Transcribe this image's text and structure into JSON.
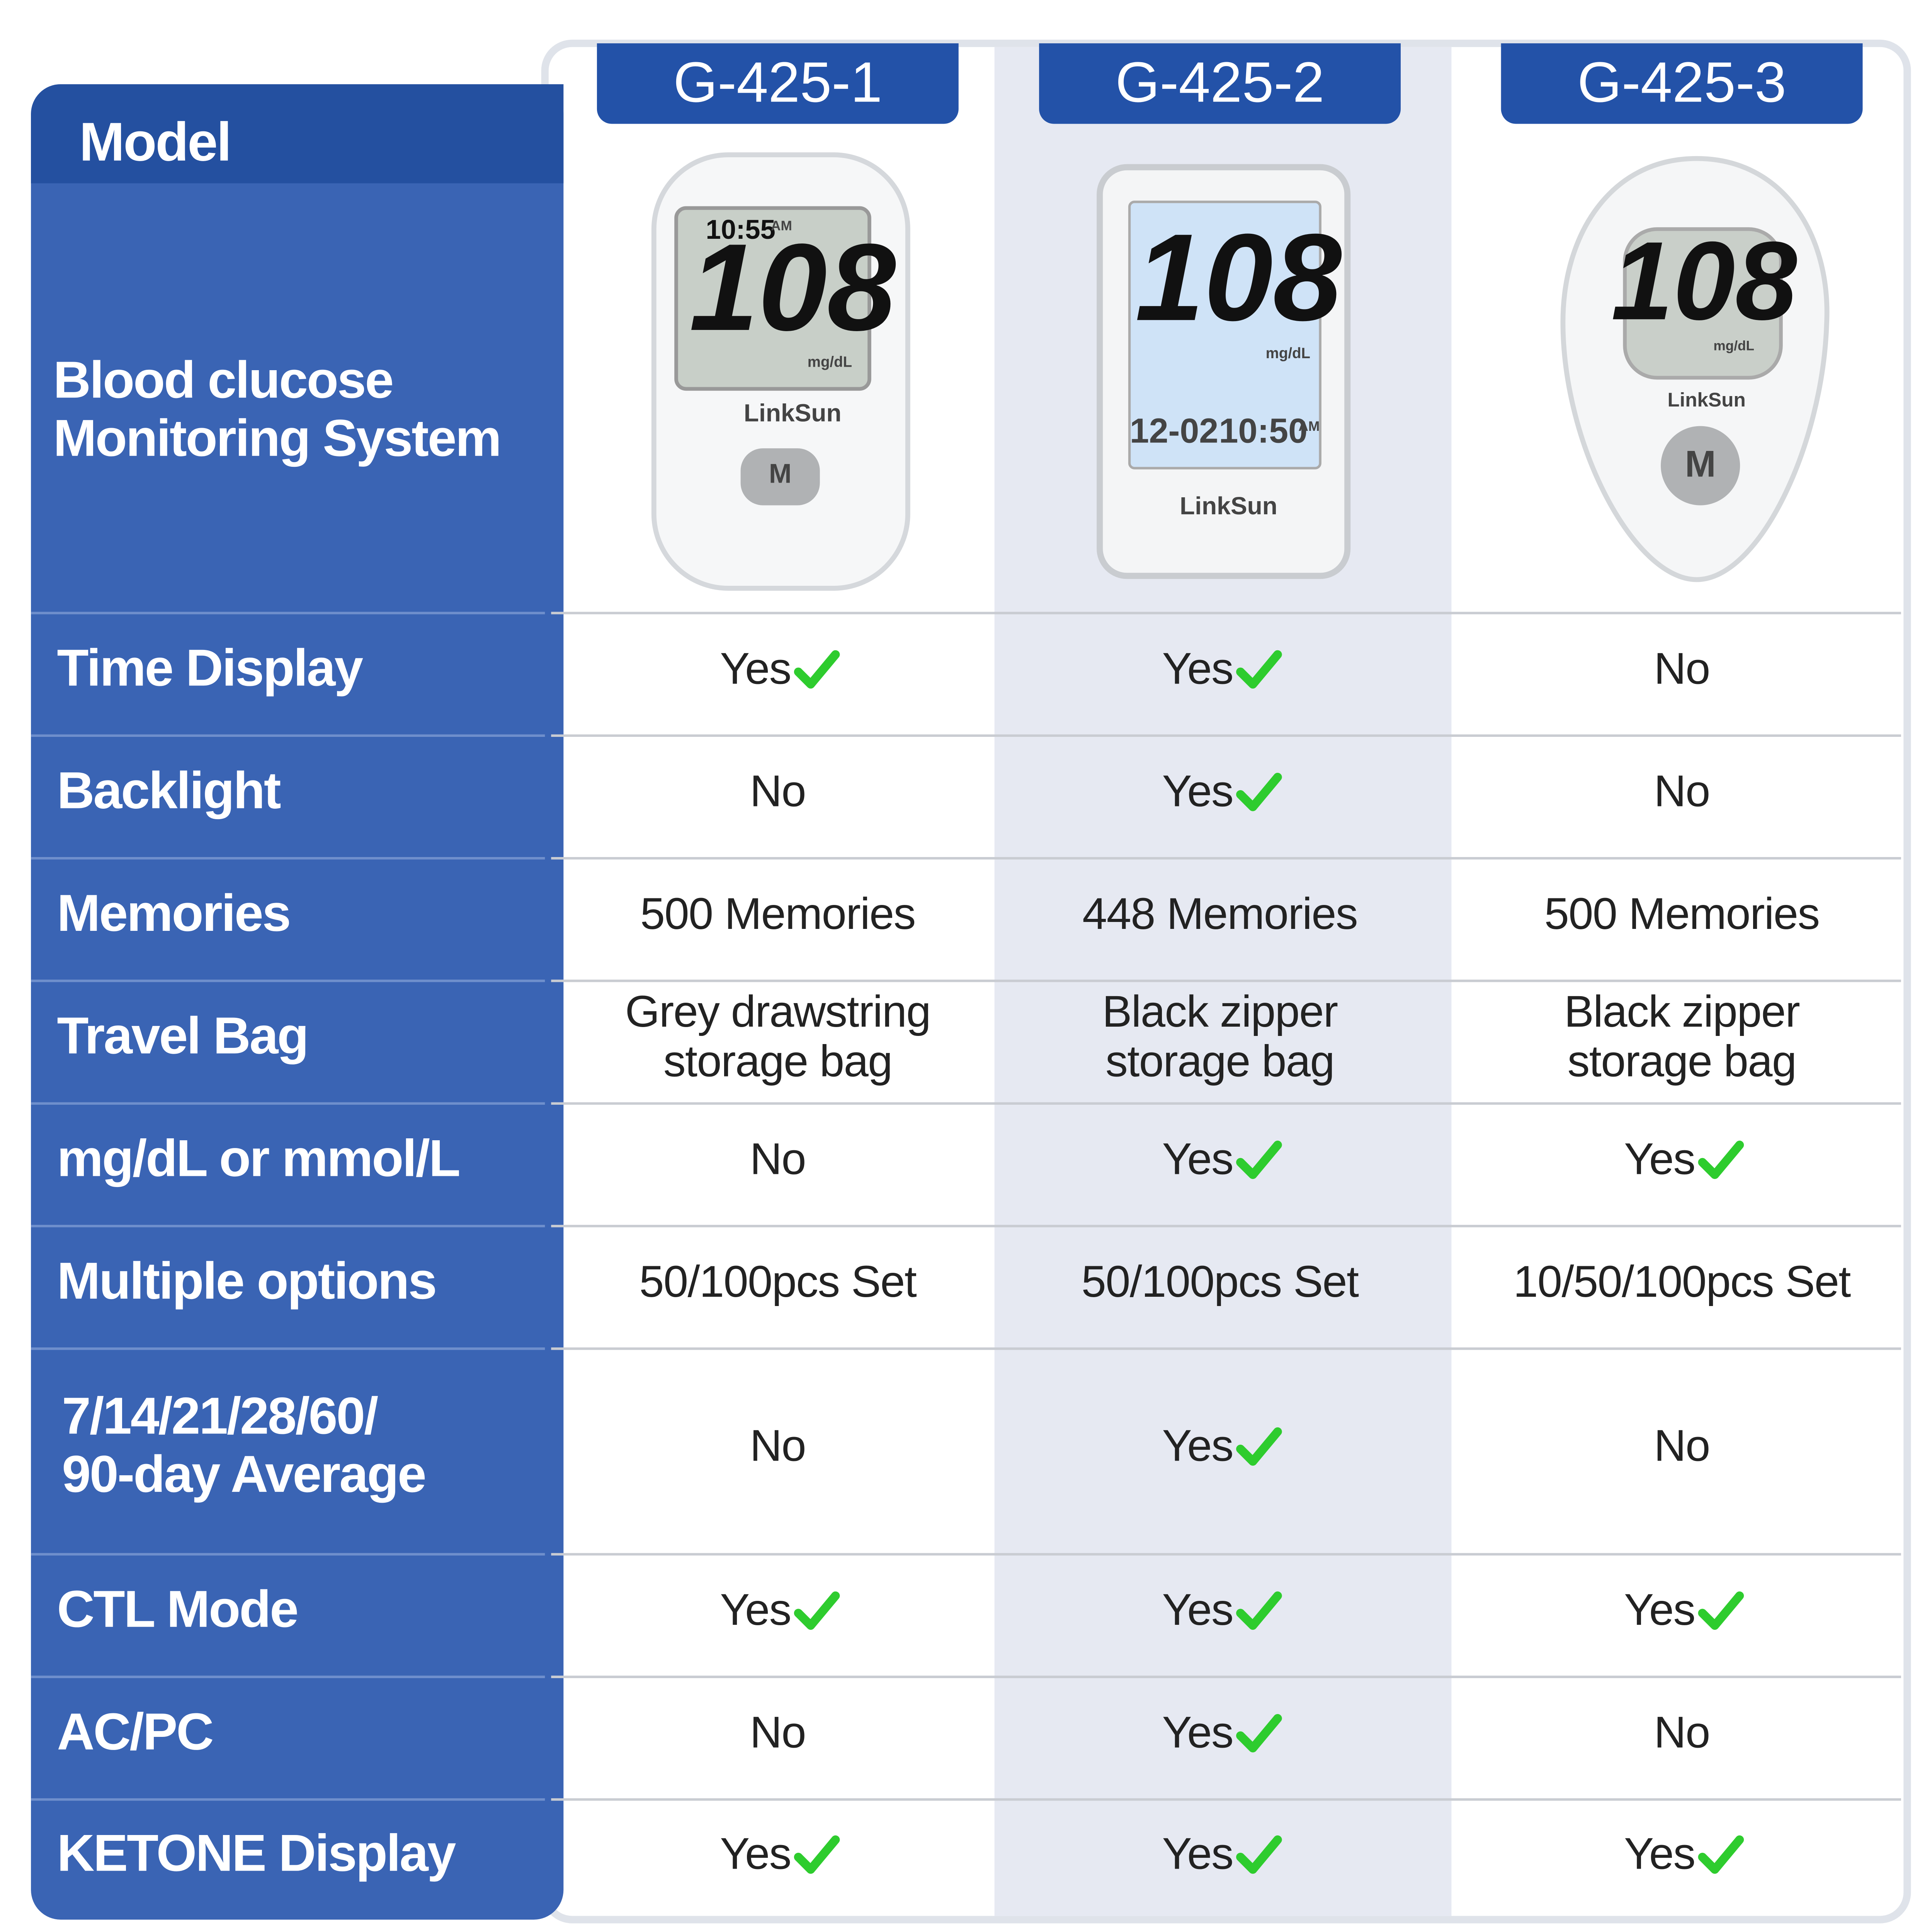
{
  "header": {
    "corner": "Model",
    "product_label": [
      "Blood clucose",
      "Monitoring System"
    ]
  },
  "models": [
    "G-425-1",
    "G-425-2",
    "G-425-3"
  ],
  "devices": [
    {
      "texts": [
        "10:55",
        "AM",
        "108",
        "mg/dL",
        "LinkSun",
        "M"
      ]
    },
    {
      "texts": [
        "108",
        "mg/dL",
        "12-02",
        "10:50",
        "AM",
        "LinkSun"
      ]
    },
    {
      "texts": [
        "108",
        "mg/dL",
        "LinkSun",
        "M"
      ]
    }
  ],
  "rows": [
    {
      "label": [
        "Time Display"
      ],
      "cells": [
        {
          "text": [
            "Yes"
          ],
          "check": true
        },
        {
          "text": [
            "Yes"
          ],
          "check": true
        },
        {
          "text": [
            "No"
          ],
          "check": false
        }
      ]
    },
    {
      "label": [
        "Backlight"
      ],
      "cells": [
        {
          "text": [
            "No"
          ],
          "check": false
        },
        {
          "text": [
            "Yes"
          ],
          "check": true
        },
        {
          "text": [
            "No"
          ],
          "check": false
        }
      ]
    },
    {
      "label": [
        "Memories"
      ],
      "cells": [
        {
          "text": [
            "500 Memories"
          ],
          "check": false
        },
        {
          "text": [
            "448 Memories"
          ],
          "check": false
        },
        {
          "text": [
            "500 Memories"
          ],
          "check": false
        }
      ]
    },
    {
      "label": [
        "Travel Bag"
      ],
      "cells": [
        {
          "text": [
            "Grey drawstring",
            "storage bag"
          ],
          "check": false
        },
        {
          "text": [
            "Black zipper",
            "storage bag"
          ],
          "check": false
        },
        {
          "text": [
            "Black zipper",
            "storage bag"
          ],
          "check": false
        }
      ]
    },
    {
      "label": [
        "mg/dL or mmol/L"
      ],
      "cells": [
        {
          "text": [
            "No"
          ],
          "check": false
        },
        {
          "text": [
            "Yes"
          ],
          "check": true
        },
        {
          "text": [
            "Yes"
          ],
          "check": true
        }
      ]
    },
    {
      "label": [
        "Multiple options"
      ],
      "cells": [
        {
          "text": [
            "50/100pcs Set"
          ],
          "check": false
        },
        {
          "text": [
            "50/100pcs Set"
          ],
          "check": false
        },
        {
          "text": [
            "10/50/100pcs Set"
          ],
          "check": false
        }
      ]
    },
    {
      "label": [
        "7/14/21/28/60/",
        "90-day Average"
      ],
      "cells": [
        {
          "text": [
            "No"
          ],
          "check": false
        },
        {
          "text": [
            "Yes"
          ],
          "check": true
        },
        {
          "text": [
            "No"
          ],
          "check": false
        }
      ]
    },
    {
      "label": [
        "CTL Mode"
      ],
      "cells": [
        {
          "text": [
            "Yes"
          ],
          "check": true
        },
        {
          "text": [
            "Yes"
          ],
          "check": true
        },
        {
          "text": [
            "Yes"
          ],
          "check": true
        }
      ]
    },
    {
      "label": [
        "AC/PC"
      ],
      "cells": [
        {
          "text": [
            "No"
          ],
          "check": false
        },
        {
          "text": [
            "Yes"
          ],
          "check": true
        },
        {
          "text": [
            "No"
          ],
          "check": false
        }
      ]
    },
    {
      "label": [
        "KETONE Display"
      ],
      "cells": [
        {
          "text": [
            "Yes"
          ],
          "check": true
        },
        {
          "text": [
            "Yes"
          ],
          "check": true
        },
        {
          "text": [
            "Yes"
          ],
          "check": true
        }
      ]
    }
  ]
}
